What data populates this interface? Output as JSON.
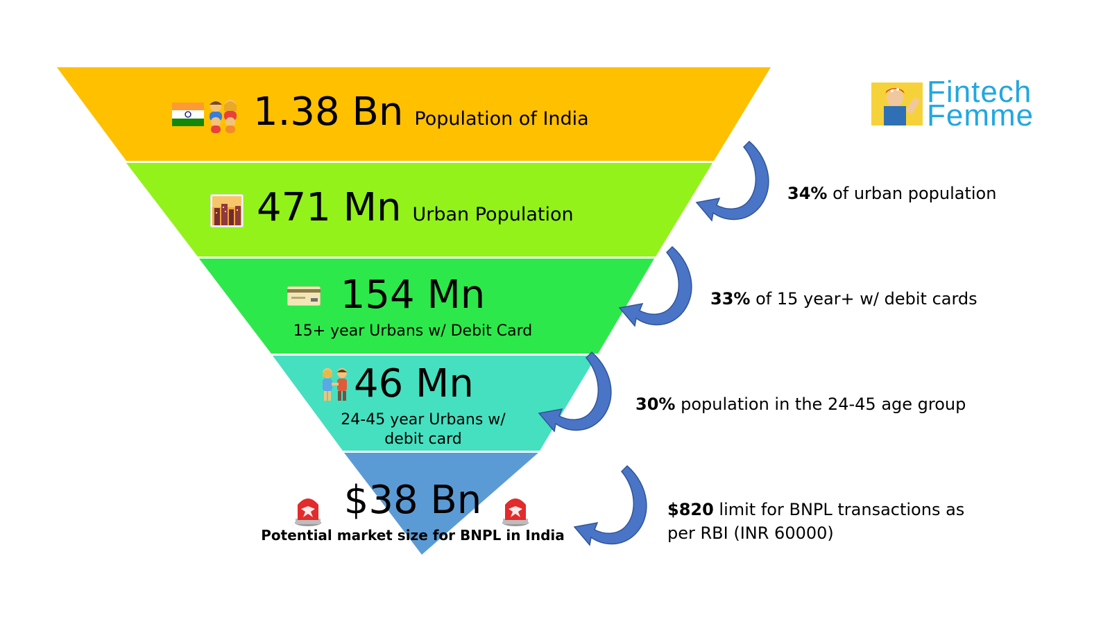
{
  "levels": [
    {
      "value": "1.38 Bn",
      "label": "Population of India",
      "color": "#FFC000",
      "icon": "india-flag-family-icon"
    },
    {
      "value": "471 Mn",
      "label": "Urban Population",
      "color": "#92F21A",
      "icon": "cityscape-icon"
    },
    {
      "value": "154 Mn",
      "label": "15+ year Urbans w/ Debit Card",
      "color": "#2DE84A",
      "icon": "credit-card-icon"
    },
    {
      "value": "46 Mn",
      "label_line1": "24-45 year Urbans w/",
      "label_line2": "debit card",
      "color": "#45E0BF",
      "icon": "couple-icon"
    },
    {
      "value": "$38 Bn",
      "label": "Potential market size for BNPL in India",
      "color": "#5B9BD5",
      "icon": "siren-icon"
    }
  ],
  "notes": [
    {
      "bold": "34%",
      "text": " of urban population"
    },
    {
      "bold": "33%",
      "text": " of 15 year+ w/ debit cards"
    },
    {
      "bold": "30%",
      "text": " population in the 24-45 age group"
    },
    {
      "bold": "$820",
      "text": " limit for BNPL transactions as",
      "text_line2": "per RBI (INR 60000)"
    }
  ],
  "logo": {
    "line1": "Fintech",
    "line2": "Femme",
    "color": "#22A7E0"
  },
  "arrow_color": "#4472C4"
}
